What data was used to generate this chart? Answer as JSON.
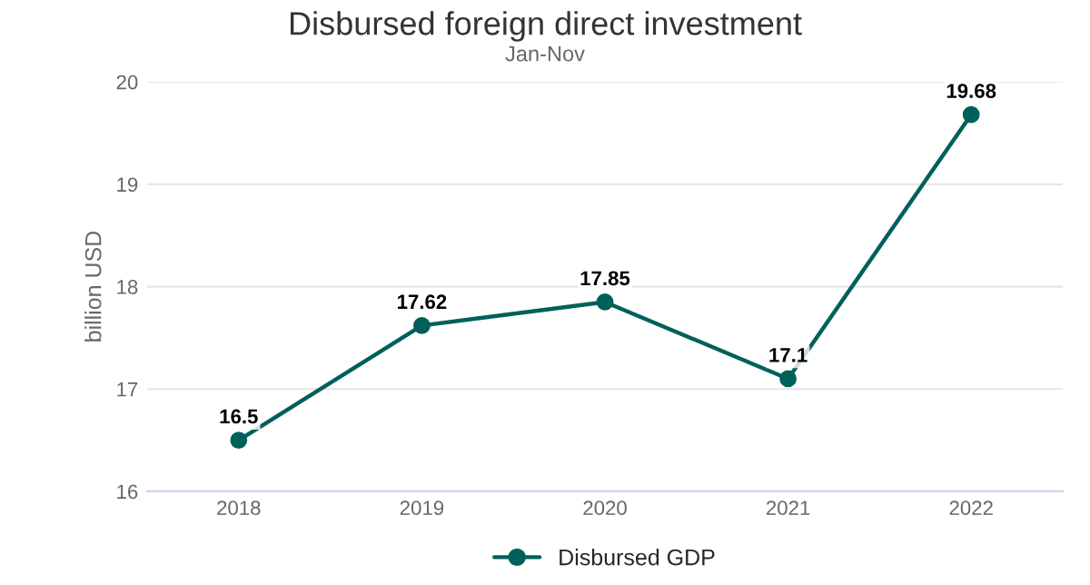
{
  "chart_data": {
    "type": "line",
    "title": "Disbursed foreign direct investment",
    "subtitle": "Jan-Nov",
    "ylabel": "billion USD",
    "categories": [
      "2018",
      "2019",
      "2020",
      "2021",
      "2022"
    ],
    "series": [
      {
        "name": "Disbursed GDP",
        "color": "#00605a",
        "values": [
          16.5,
          17.62,
          17.85,
          17.1,
          19.68
        ]
      }
    ],
    "ylim": [
      16,
      20
    ],
    "yticks": [
      16,
      17,
      18,
      19,
      20
    ],
    "grid": "y",
    "legend": "bottom",
    "marker": "circle",
    "line_style": "solid",
    "data_labels": true
  }
}
